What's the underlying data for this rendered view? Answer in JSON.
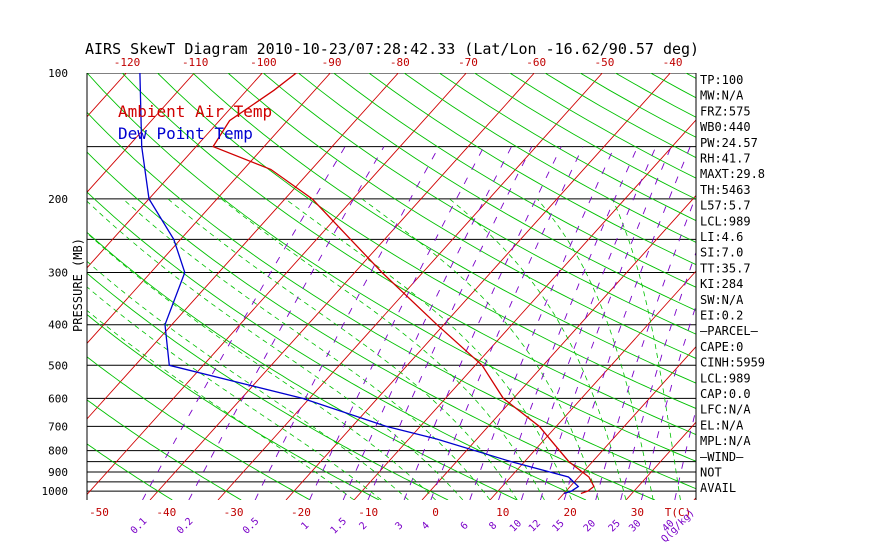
{
  "title": "AIRS SkewT Diagram 2010-10-23/07:28:42.33 (Lat/Lon -16.62/90.57 deg)",
  "legend": [
    {
      "label": "Ambient Air Temp",
      "color": "#d00000"
    },
    {
      "label": "Dew Point Temp",
      "color": "#0000d0"
    }
  ],
  "colors": {
    "isotherm": "#d00000",
    "dry_adiabat": "#00c000",
    "moist_adiabat": "#00c000",
    "mixing_ratio": "#7a00c8",
    "isobar": "#000000",
    "temperature": "#d00000",
    "dewpoint": "#0000d0"
  },
  "chart_data": {
    "type": "skewt",
    "ylabel": "PRESSURE (MB)",
    "pressure_ticks": [
      100,
      200,
      300,
      400,
      500,
      600,
      700,
      800,
      900,
      1000
    ],
    "top_temp_ticks": [
      -120,
      -110,
      -100,
      -90,
      -80,
      -70,
      -60,
      -50,
      -40
    ],
    "bottom_temp_ticks": [
      "-50",
      "-40",
      "-30",
      "-20",
      "-10",
      "0",
      "10",
      "20",
      "30",
      "T(C)"
    ],
    "mixing_ratio_labels": [
      "0.1",
      "0.2",
      "0.5",
      "1",
      "1.5",
      "2",
      "3",
      "4",
      "6",
      "8",
      "10",
      "12",
      "15",
      "20",
      "25",
      "30",
      "40",
      "Q(g/kg)"
    ],
    "mixing_ratio_values": [
      0.1,
      0.2,
      0.5,
      1,
      1.5,
      2,
      3,
      4,
      6,
      8,
      10,
      12,
      15,
      20,
      25,
      30,
      40
    ],
    "temperature_profile": [
      {
        "p": 1013,
        "t": 22.5
      },
      {
        "p": 1000,
        "t": 23.2
      },
      {
        "p": 975,
        "t": 23.5
      },
      {
        "p": 925,
        "t": 21.5
      },
      {
        "p": 850,
        "t": 16.5
      },
      {
        "p": 700,
        "t": 7.5
      },
      {
        "p": 600,
        "t": -1.5
      },
      {
        "p": 500,
        "t": -9.0
      },
      {
        "p": 400,
        "t": -21.0
      },
      {
        "p": 300,
        "t": -36.0
      },
      {
        "p": 250,
        "t": -45.0
      },
      {
        "p": 200,
        "t": -56.0
      },
      {
        "p": 170,
        "t": -66.0
      },
      {
        "p": 150,
        "t": -77.5
      },
      {
        "p": 130,
        "t": -78.5
      },
      {
        "p": 110,
        "t": -76.0
      },
      {
        "p": 100,
        "t": -75.0
      }
    ],
    "dewpoint_profile": [
      {
        "p": 1013,
        "t": 20.0
      },
      {
        "p": 1000,
        "t": 20.8
      },
      {
        "p": 975,
        "t": 21.2
      },
      {
        "p": 925,
        "t": 18.5
      },
      {
        "p": 850,
        "t": 8.0
      },
      {
        "p": 750,
        "t": -6.0
      },
      {
        "p": 700,
        "t": -15.0
      },
      {
        "p": 600,
        "t": -31.0
      },
      {
        "p": 500,
        "t": -55.0
      },
      {
        "p": 400,
        "t": -61.0
      },
      {
        "p": 300,
        "t": -65.0
      },
      {
        "p": 250,
        "t": -71.0
      },
      {
        "p": 200,
        "t": -80.0
      },
      {
        "p": 150,
        "t": -88.0
      },
      {
        "p": 100,
        "t": -98.0
      }
    ],
    "indices": [
      "TP:100",
      "MW:N/A",
      "FRZ:575",
      "WB0:440",
      "PW:24.57",
      "RH:41.7",
      "MAXT:29.8",
      "TH:5463",
      "L57:5.7",
      "LCL:989",
      "LI:4.6",
      "SI:7.0",
      "TT:35.7",
      "KI:284",
      "SW:N/A",
      "EI:0.2",
      "—PARCEL—",
      "CAPE:0",
      "CINH:5959",
      "LCL:989",
      "CAP:0.0",
      "LFC:N/A",
      "EL:N/A",
      "MPL:N/A",
      "—WIND—",
      "NOT",
      "AVAIL"
    ]
  }
}
